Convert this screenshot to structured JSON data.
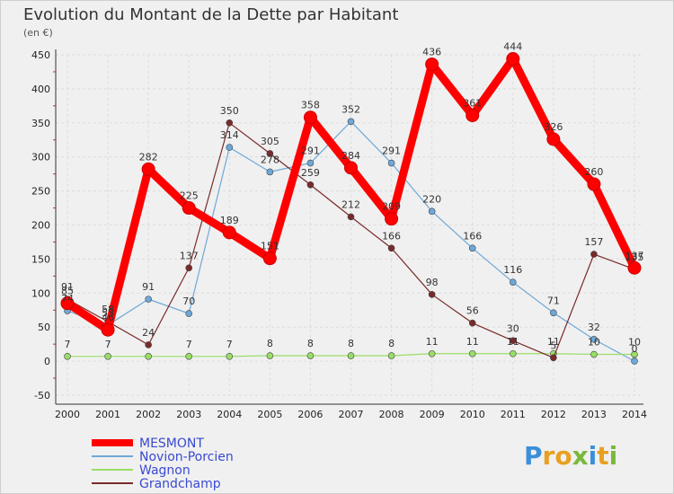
{
  "chart_data": {
    "type": "line",
    "title": "Evolution du Montant de la Dette par Habitant",
    "subtitle": "(en €)",
    "x": [
      "2000",
      "2001",
      "2002",
      "2003",
      "2004",
      "2005",
      "2006",
      "2007",
      "2008",
      "2009",
      "2010",
      "2011",
      "2012",
      "2013",
      "2014"
    ],
    "ylim": [
      -50,
      450
    ],
    "yticks": [
      -50,
      0,
      50,
      100,
      150,
      200,
      250,
      300,
      350,
      400,
      450
    ],
    "grid": true,
    "legend_position": "bottom-left",
    "series": [
      {
        "name": "MESMONT",
        "color": "#ff0000",
        "values": [
          85,
          46,
          282,
          225,
          189,
          151,
          358,
          284,
          209,
          436,
          361,
          444,
          326,
          260,
          137
        ],
        "labels": [
          "85",
          "46",
          "282",
          "225",
          "189",
          "151",
          "358",
          "284",
          "209",
          "436",
          "361",
          "444",
          "326",
          "260",
          "137"
        ]
      },
      {
        "name": "Novion-Porcien",
        "color": "#6ea8d8",
        "values": [
          74,
          53,
          91,
          70,
          314,
          278,
          291,
          352,
          291,
          220,
          166,
          116,
          71,
          32,
          0
        ],
        "labels": [
          "74",
          "53",
          "91",
          "70",
          "314",
          "278",
          "291",
          "352",
          "291",
          "220",
          "166",
          "116",
          "71",
          "32",
          "0"
        ]
      },
      {
        "name": "Wagnon",
        "color": "#99dd66",
        "values": [
          7,
          7,
          7,
          7,
          7,
          8,
          8,
          8,
          8,
          11,
          11,
          11,
          11,
          10,
          10
        ],
        "labels": [
          "7",
          "7",
          "",
          "7",
          "7",
          "8",
          "8",
          "8",
          "8",
          "11",
          "11",
          "11",
          "11",
          "10",
          "10"
        ]
      },
      {
        "name": "Grandchamp",
        "color": "#7a2a2a",
        "values": [
          91,
          58,
          24,
          137,
          350,
          305,
          259,
          212,
          166,
          98,
          56,
          30,
          5,
          157,
          135
        ],
        "labels": [
          "91",
          "58",
          "24",
          "137",
          "350",
          "305",
          "259",
          "212",
          "166",
          "98",
          "56",
          "30",
          "5",
          "157",
          "135"
        ]
      }
    ]
  },
  "brand": {
    "letters": [
      "P",
      "r",
      "o",
      "x",
      "i",
      "t",
      "i"
    ],
    "colors": [
      "#3b8fd9",
      "#e8a020",
      "#e8a020",
      "#7ab83a",
      "#3b8fd9",
      "#e8a020",
      "#7ab83a"
    ]
  }
}
